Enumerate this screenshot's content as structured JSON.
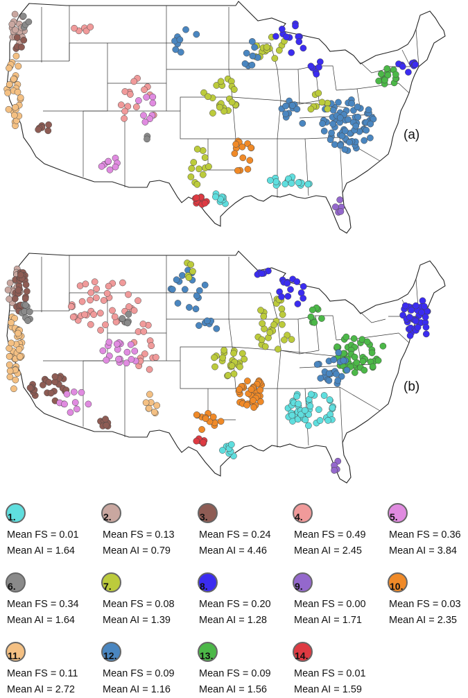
{
  "panels": [
    {
      "label": "(a)"
    },
    {
      "label": "(b)"
    }
  ],
  "clusters": [
    {
      "number": "1.",
      "color": "#5fdede",
      "fs": "Mean FS = 0.01",
      "ai": "Mean AI = 1.64"
    },
    {
      "number": "2.",
      "color": "#c9a7a0",
      "fs": "Mean FS = 0.13",
      "ai": "Mean AI = 0.79"
    },
    {
      "number": "3.",
      "color": "#8e5c54",
      "fs": "Mean FS = 0.24",
      "ai": "Mean AI = 4.46"
    },
    {
      "number": "4.",
      "color": "#f09a9a",
      "fs": "Mean FS = 0.49",
      "ai": "Mean AI = 2.45"
    },
    {
      "number": "5.",
      "color": "#e08be0",
      "fs": "Mean FS = 0.36",
      "ai": "Mean AI = 3.84"
    },
    {
      "number": "6.",
      "color": "#8a8a8a",
      "fs": "Mean FS = 0.34",
      "ai": "Mean AI = 1.64"
    },
    {
      "number": "7.",
      "color": "#bccb3c",
      "fs": "Mean FS = 0.08",
      "ai": "Mean AI = 1.39"
    },
    {
      "number": "8.",
      "color": "#3b2cf0",
      "fs": "Mean FS = 0.20",
      "ai": "Mean AI = 1.28"
    },
    {
      "number": "9.",
      "color": "#9468cc",
      "fs": "Mean FS = 0.00",
      "ai": "Mean AI = 1.71"
    },
    {
      "number": "10.",
      "color": "#f08a28",
      "fs": "Mean FS = 0.03",
      "ai": "Mean AI = 2.35"
    },
    {
      "number": "11.",
      "color": "#f4c083",
      "fs": "Mean FS = 0.11",
      "ai": "Mean AI = 2.72"
    },
    {
      "number": "12.",
      "color": "#4a86c0",
      "fs": "Mean FS = 0.09",
      "ai": "Mean AI = 1.16"
    },
    {
      "number": "13.",
      "color": "#4cb848",
      "fs": "Mean FS = 0.09",
      "ai": "Mean AI = 1.56"
    },
    {
      "number": "14.",
      "color": "#de3a42",
      "fs": "Mean FS = 0.01",
      "ai": "Mean AI = 1.59"
    }
  ]
}
